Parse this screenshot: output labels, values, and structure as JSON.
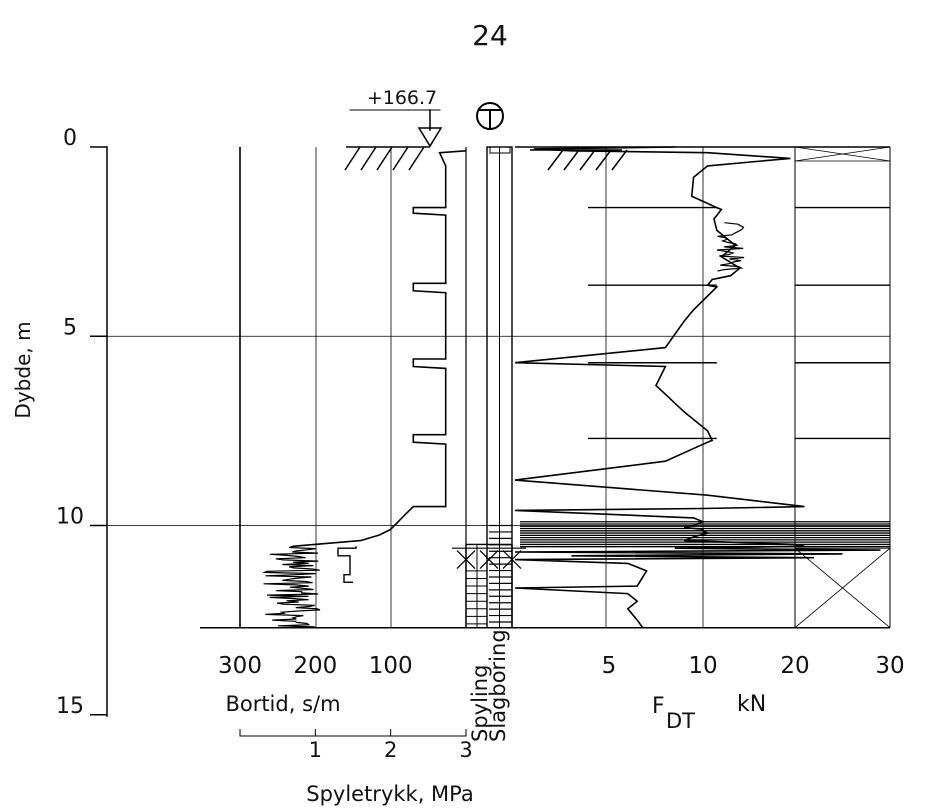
{
  "page_number": "24",
  "elevation_label": "+166.7",
  "borehole_symbol": "T",
  "chart_data": {
    "type": "line",
    "title": "",
    "depth_axis": {
      "label": "Dybde, m",
      "ticks": [
        0,
        5,
        10,
        15
      ],
      "range": [
        0,
        15
      ],
      "inverted": true
    },
    "end_depth": 12.7,
    "grid": true,
    "bortid_axis": {
      "label": "Bortid, s/m",
      "ticks": [
        300,
        200,
        100
      ],
      "range": [
        300,
        0
      ],
      "x": [
        0,
        35,
        27,
        27,
        70,
        70,
        27,
        27,
        70,
        70,
        27,
        27,
        70,
        70,
        27,
        27,
        70,
        70,
        27,
        27,
        70,
        80,
        90,
        100,
        115,
        140,
        230,
        300,
        230,
        260,
        210,
        250,
        200,
        270,
        220,
        280,
        225,
        255,
        215,
        300
      ],
      "depth": [
        0.1,
        0.15,
        0.5,
        1.6,
        1.6,
        1.75,
        1.8,
        3.6,
        3.6,
        3.8,
        3.85,
        5.6,
        5.6,
        5.8,
        5.85,
        7.6,
        7.6,
        7.8,
        7.85,
        9.5,
        9.5,
        9.7,
        9.9,
        10.1,
        10.25,
        10.4,
        10.55,
        10.7,
        10.9,
        11.1,
        11.3,
        11.5,
        11.7,
        11.9,
        12.1,
        12.3,
        12.45,
        12.6,
        12.7,
        12.7
      ]
    },
    "spyletrykk_axis": {
      "label": "Spyletrykk, MPa",
      "ticks": [
        1,
        2,
        3
      ],
      "range": [
        0,
        3
      ]
    },
    "method_labels": [
      "Spyling",
      "Slagboring"
    ],
    "fdt_axis": {
      "label": "F",
      "label_subscript": "DT",
      "label_unit": "kN",
      "ticks": [
        5,
        10,
        20,
        30
      ],
      "x": [
        8.5,
        1.0,
        3.0,
        10.5,
        19.5,
        10.5,
        9.5,
        9.4,
        11.5,
        12.0,
        11.2,
        11.5,
        12.5,
        13.5,
        12.0,
        14.0,
        13.0,
        11.0,
        10.5,
        11.5,
        9.5,
        9.0,
        8.0,
        0.0,
        8.0,
        7.5,
        9.0,
        10.5,
        11.0,
        10.5,
        8.0,
        0.0,
        10.5,
        21.0,
        10.0,
        0.0,
        9.5,
        10.0,
        9.5,
        9.0,
        10.0,
        10.0,
        10.5,
        9.5,
        9.0,
        20.0,
        21.0,
        8.5,
        29.0,
        0.0,
        25.0,
        3.0,
        22.0,
        0.0,
        6.0,
        7.0,
        6.5,
        0.0,
        6.0,
        6.5,
        6.0,
        6.5,
        6.8
      ],
      "depth": [
        0.0,
        0.05,
        0.1,
        0.15,
        0.3,
        0.5,
        0.8,
        1.3,
        1.6,
        1.65,
        1.9,
        2.2,
        2.4,
        2.6,
        2.9,
        3.2,
        3.4,
        3.5,
        3.65,
        3.7,
        4.3,
        4.6,
        5.3,
        5.7,
        5.8,
        6.3,
        7.0,
        7.5,
        7.75,
        7.8,
        8.3,
        8.8,
        9.2,
        9.5,
        9.55,
        9.6,
        9.8,
        9.9,
        10.0,
        10.05,
        10.1,
        10.15,
        10.2,
        10.3,
        10.4,
        10.5,
        10.55,
        10.6,
        10.65,
        10.7,
        10.75,
        10.8,
        10.85,
        10.9,
        11.0,
        11.2,
        11.6,
        11.65,
        11.8,
        12.0,
        12.2,
        12.5,
        12.7
      ],
      "marker_depths": [
        1.6,
        3.65,
        5.7,
        7.7
      ]
    }
  }
}
